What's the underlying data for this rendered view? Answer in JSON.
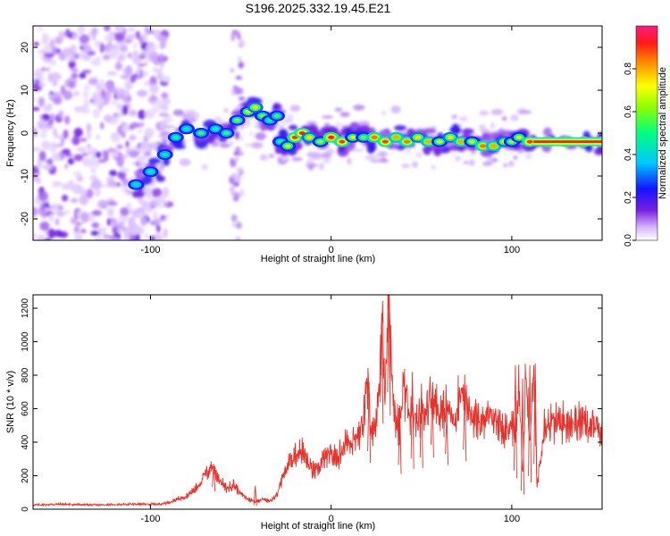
{
  "title": "S196.2025.332.19.45.E21",
  "chart_data": [
    {
      "type": "heatmap",
      "xlabel": "Height of straight line (km)",
      "ylabel": "Frequency (Hz)",
      "xlim": [
        -165,
        150
      ],
      "ylim": [
        -25,
        25
      ],
      "xticks": [
        -100,
        0,
        100
      ],
      "yticks": [
        -20,
        -10,
        0,
        10,
        20
      ],
      "colorbar": {
        "label": "Normalized spectral amplitude",
        "range": [
          0,
          1
        ],
        "ticks": [
          "0.0",
          "0.2",
          "0.4",
          "0.6",
          "0.8"
        ],
        "tick_values": [
          0,
          0.2,
          0.4,
          0.6,
          0.8
        ]
      },
      "ridge": {
        "x": [
          -108,
          -100,
          -92,
          -86,
          -80,
          -72,
          -64,
          -58,
          -52,
          -46,
          -42,
          -38,
          -34,
          -30,
          -28,
          -24,
          -20,
          -16,
          -12,
          -6,
          0,
          6,
          12,
          18,
          24,
          30,
          36,
          42,
          48,
          54,
          60,
          66,
          72,
          78,
          84,
          90,
          96,
          100,
          104,
          110,
          120,
          130,
          140,
          150
        ],
        "y": [
          -12,
          -9,
          -5,
          -1,
          1,
          0,
          1,
          0,
          3,
          5,
          6,
          4,
          3,
          4,
          -2,
          -3,
          -1,
          0,
          -1,
          -2,
          -1,
          -2,
          -1,
          -1,
          -1,
          -2,
          -1,
          -2,
          -1,
          -2,
          -2,
          -1,
          -2,
          -2,
          -3,
          -3,
          -2,
          -2,
          -1,
          -2,
          -2,
          -2,
          -2,
          -2
        ],
        "amplitude": [
          0.4,
          0.45,
          0.45,
          0.5,
          0.45,
          0.55,
          0.5,
          0.55,
          0.6,
          0.7,
          0.75,
          0.6,
          0.5,
          0.55,
          0.5,
          0.7,
          0.9,
          0.92,
          0.75,
          0.65,
          0.95,
          0.9,
          0.7,
          0.6,
          0.85,
          0.9,
          0.8,
          0.85,
          0.75,
          0.8,
          0.7,
          0.75,
          0.8,
          0.7,
          0.85,
          0.8,
          0.75,
          0.65,
          0.7,
          0.9,
          1.0,
          1.0,
          1.0,
          1.0
        ]
      }
    },
    {
      "type": "line",
      "xlabel": "Height of straight line (km)",
      "ylabel": "SNR (10 * v/v)",
      "xlim": [
        -165,
        150
      ],
      "ylim": [
        0,
        1280
      ],
      "xticks": [
        -100,
        0,
        100
      ],
      "yticks": [
        0,
        200,
        400,
        600,
        800,
        1000,
        1200
      ],
      "color": "#e8312a",
      "series": [
        {
          "name": "SNR",
          "x": [
            -165,
            -150,
            -130,
            -110,
            -95,
            -90,
            -85,
            -80,
            -75,
            -70,
            -66,
            -62,
            -58,
            -54,
            -50,
            -46,
            -42,
            -38,
            -34,
            -30,
            -28,
            -24,
            -20,
            -16,
            -12,
            -8,
            -4,
            0,
            4,
            8,
            12,
            16,
            18,
            20,
            22,
            24,
            26,
            28,
            30,
            32,
            34,
            36,
            38,
            40,
            44,
            48,
            52,
            56,
            60,
            64,
            68,
            72,
            76,
            80,
            84,
            88,
            92,
            96,
            100,
            102,
            104,
            106,
            108,
            110,
            112,
            114,
            118,
            125,
            132,
            140,
            150
          ],
          "y": [
            25,
            30,
            25,
            30,
            30,
            40,
            60,
            80,
            120,
            200,
            260,
            180,
            120,
            150,
            90,
            60,
            45,
            60,
            50,
            80,
            160,
            260,
            330,
            350,
            250,
            220,
            300,
            320,
            310,
            400,
            420,
            460,
            560,
            740,
            520,
            430,
            600,
            1160,
            700,
            1270,
            720,
            550,
            480,
            700,
            560,
            520,
            600,
            700,
            560,
            600,
            530,
            720,
            580,
            540,
            520,
            560,
            510,
            490,
            500,
            420,
            750,
            200,
            860,
            360,
            840,
            140,
            520,
            510,
            530,
            520,
            500
          ]
        }
      ],
      "spikes": {
        "x": [
          -65,
          -42,
          21,
          28,
          32,
          38,
          45,
          50,
          56,
          64,
          74,
          102,
          106,
          110,
          113
        ],
        "y": [
          270,
          140,
          760,
          1170,
          1280,
          620,
          820,
          750,
          700,
          560,
          720,
          860,
          780,
          860,
          870
        ]
      }
    }
  ]
}
